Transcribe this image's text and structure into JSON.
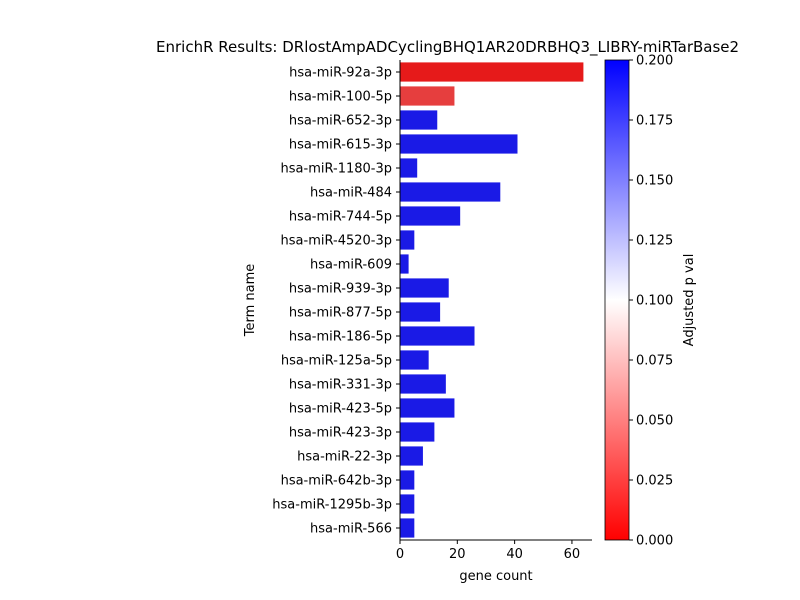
{
  "chart_data": {
    "type": "bar",
    "orientation": "horizontal",
    "title": "EnrichR Results: DRlostAmpADCyclingBHQ1AR20DRBHQ3_LIBRY-miRTarBase2",
    "xlabel": "gene count",
    "ylabel": "Term name",
    "xlim": [
      0,
      67
    ],
    "x_ticks": [
      "0",
      "20",
      "40",
      "60"
    ],
    "categories": [
      "hsa-miR-92a-3p",
      "hsa-miR-100-5p",
      "hsa-miR-652-3p",
      "hsa-miR-615-3p",
      "hsa-miR-1180-3p",
      "hsa-miR-484",
      "hsa-miR-744-5p",
      "hsa-miR-4520-3p",
      "hsa-miR-609",
      "hsa-miR-939-3p",
      "hsa-miR-877-5p",
      "hsa-miR-186-5p",
      "hsa-miR-125a-5p",
      "hsa-miR-331-3p",
      "hsa-miR-423-5p",
      "hsa-miR-423-3p",
      "hsa-miR-22-3p",
      "hsa-miR-642b-3p",
      "hsa-miR-1295b-3p",
      "hsa-miR-566"
    ],
    "values": [
      64,
      19,
      13,
      41,
      6,
      35,
      21,
      5,
      3,
      17,
      14,
      26,
      10,
      16,
      19,
      12,
      8,
      5,
      5,
      5
    ],
    "adjusted_p_values": [
      0.0,
      0.016,
      0.2,
      0.2,
      0.2,
      0.2,
      0.2,
      0.2,
      0.2,
      0.2,
      0.2,
      0.2,
      0.2,
      0.2,
      0.2,
      0.2,
      0.2,
      0.2,
      0.2,
      0.2
    ],
    "colorbar": {
      "label": "Adjusted p val",
      "range": [
        0.0,
        0.2
      ],
      "ticks": [
        "0.000",
        "0.025",
        "0.050",
        "0.075",
        "0.100",
        "0.125",
        "0.150",
        "0.175",
        "0.200"
      ],
      "colors": [
        "#ff0000",
        "#ffffff",
        "#0000ff"
      ]
    },
    "grid": false
  }
}
